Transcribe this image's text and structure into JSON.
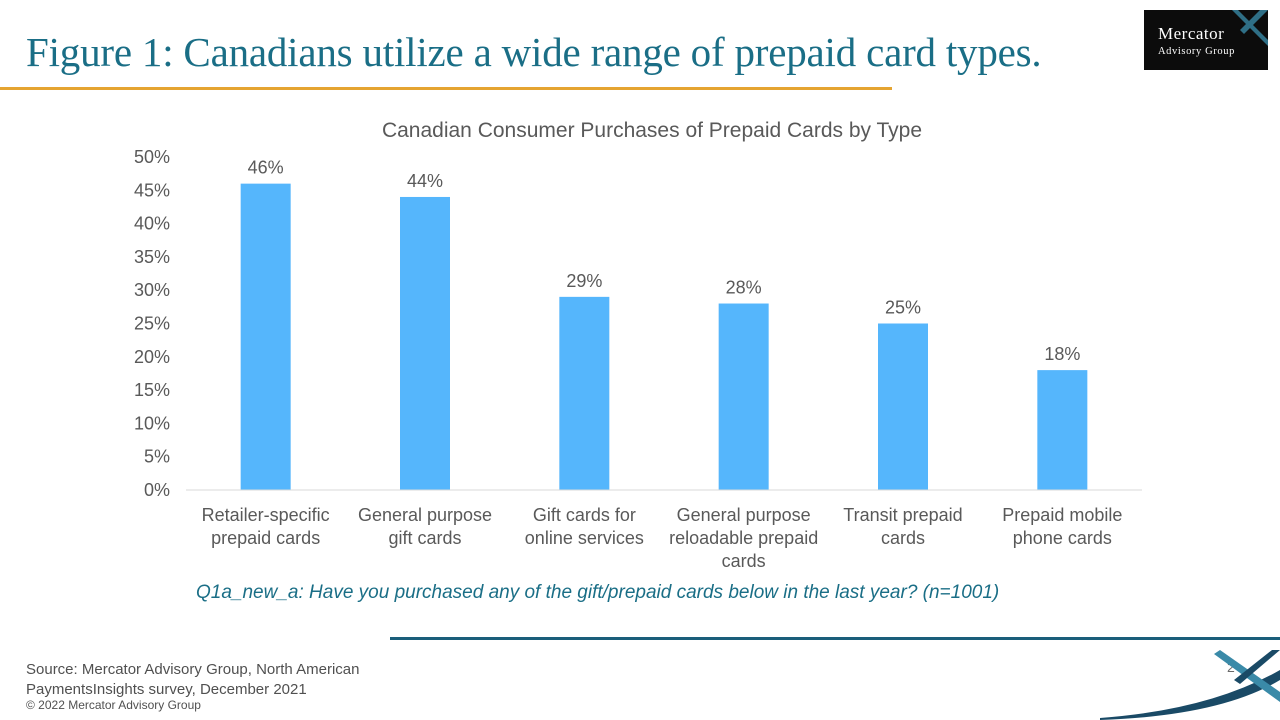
{
  "slide": {
    "title": "Figure 1: Canadians utilize a wide range of prepaid card types.",
    "question": "Q1a_new_a: Have you purchased any of the gift/prepaid cards below in the last year? (n=1001)",
    "source": "Source: Mercator Advisory Group, North American PaymentsInsights survey, December 2021",
    "copyright": "© 2022 Mercator Advisory Group",
    "page_number": "2"
  },
  "logo": {
    "line1": "Mercator",
    "line2": "Advisory Group"
  },
  "colors": {
    "title": "#1a6e86",
    "title_rule": "#e5a431",
    "bar": "#55b6fc",
    "footer_rule": "#1a5e7a",
    "corner_dark": "#1a4a66",
    "corner_teal": "#3a8aa8"
  },
  "chart_data": {
    "type": "bar",
    "title": "Canadian Consumer Purchases of Prepaid Cards by Type",
    "categories": [
      "Retailer-specific prepaid cards",
      "General purpose gift cards",
      "Gift cards for online services",
      "General purpose reloadable prepaid cards",
      "Transit prepaid cards",
      "Prepaid mobile phone cards"
    ],
    "category_lines": [
      [
        "Retailer-specific",
        "prepaid cards"
      ],
      [
        "General purpose",
        "gift cards"
      ],
      [
        "Gift cards for",
        "online services"
      ],
      [
        "General purpose",
        "reloadable prepaid",
        "cards"
      ],
      [
        "Transit prepaid",
        "cards"
      ],
      [
        "Prepaid mobile",
        "phone cards"
      ]
    ],
    "values": [
      46,
      44,
      29,
      28,
      25,
      18
    ],
    "data_labels": [
      "46%",
      "44%",
      "29%",
      "28%",
      "25%",
      "18%"
    ],
    "yticks": [
      "0%",
      "5%",
      "10%",
      "15%",
      "20%",
      "25%",
      "30%",
      "35%",
      "40%",
      "45%",
      "50%"
    ],
    "ylim": [
      0,
      50
    ],
    "xlabel": "",
    "ylabel": "",
    "grid": false,
    "legend": "none"
  }
}
